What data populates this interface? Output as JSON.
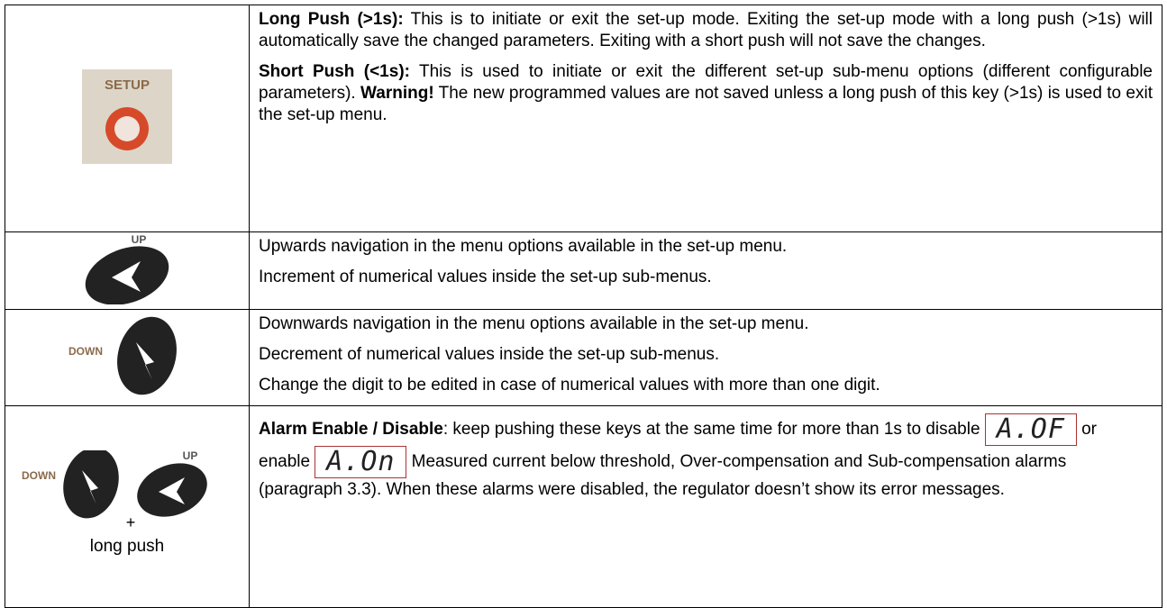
{
  "rows": [
    {
      "icon": {
        "label": "SETUP"
      },
      "paragraphs": [
        {
          "runs": [
            {
              "text": "Long Push (>1s):",
              "bold": true
            },
            {
              "text": " This is to initiate or exit the set-up mode. Exiting the set-up mode with a long push (>1s) will automatically save the changed parameters. Exiting with a short push will not save the changes."
            }
          ]
        },
        {
          "runs": [
            {
              "text": "Short Push (<1s):",
              "bold": true
            },
            {
              "text": " This is used to initiate or exit the different set-up sub-menu options (different configurable parameters). "
            },
            {
              "text": "Warning!",
              "bold": true
            },
            {
              "text": "  The new programmed values are not saved unless a long push of this key (>1s) is used to exit the set-up menu."
            }
          ]
        }
      ]
    },
    {
      "icon": {
        "label": "UP"
      },
      "paragraphs": [
        {
          "runs": [
            {
              "text": "Upwards navigation in the menu options available in the set-up menu."
            }
          ]
        },
        {
          "runs": [
            {
              "text": "Increment of numerical values inside the set-up sub-menus."
            }
          ]
        }
      ]
    },
    {
      "icon": {
        "label": "DOWN"
      },
      "paragraphs": [
        {
          "runs": [
            {
              "text": "Downwards navigation in the menu options available in the set-up menu."
            }
          ]
        },
        {
          "runs": [
            {
              "text": "Decrement of numerical values inside the set-up sub-menus."
            }
          ]
        },
        {
          "runs": [
            {
              "text": "Change the digit to be edited in case of numerical values with more than one digit."
            }
          ]
        }
      ]
    },
    {
      "icon": {
        "label": "DOWN",
        "plus": "+",
        "label2": "UP",
        "caption": "long push"
      },
      "paragraphs": [
        {
          "runs": [
            {
              "text": "Alarm Enable / Disable",
              "bold": true
            },
            {
              "text": ":  keep pushing these keys at the same time for more than 1s to disable "
            },
            {
              "display": "A.OF"
            },
            {
              "text": " or enable "
            },
            {
              "display": "A.On"
            },
            {
              "text": " Measured current below threshold, Over-compensation and Sub-compensation alarms (paragraph 3.3). When these alarms were disabled, the regulator doesn’t show its error messages."
            }
          ]
        }
      ]
    }
  ]
}
